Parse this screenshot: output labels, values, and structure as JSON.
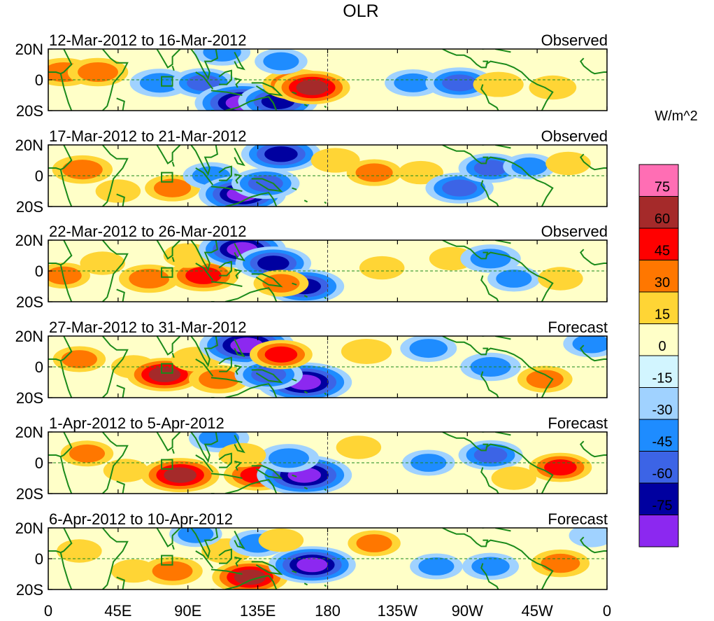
{
  "chart_data": {
    "type": "heatmap",
    "title": "OLR",
    "units_label": "W/m^2",
    "x_tick_labels": [
      "0",
      "45E",
      "90E",
      "135E",
      "180",
      "135W",
      "90W",
      "45W",
      "0"
    ],
    "x_tick_lons": [
      0,
      45,
      90,
      135,
      180,
      225,
      270,
      315,
      360
    ],
    "y_tick_labels": [
      "20N",
      "0",
      "20S"
    ],
    "y_tick_lats": [
      20,
      0,
      -20
    ],
    "lon_range": [
      0,
      360
    ],
    "lat_range": [
      -20,
      20
    ],
    "colorbar": {
      "labels": [
        "75",
        "60",
        "45",
        "30",
        "15",
        "0",
        "-15",
        "-30",
        "-45",
        "-60",
        "-75"
      ],
      "levels": [
        75,
        60,
        45,
        30,
        15,
        0,
        -15,
        -30,
        -45,
        -60,
        -75
      ],
      "colors": [
        "#ff6eb4",
        "#a52a2a",
        "#ff0000",
        "#ff7700",
        "#ffd535",
        "#ffffc8",
        "#d2f5ff",
        "#a0d2ff",
        "#1e8cff",
        "#3c64e6",
        "#0000a0",
        "#8c28f0"
      ]
    },
    "panels": [
      {
        "period": "12-Mar-2012 to 16-Mar-2012",
        "kind": "Observed",
        "anomalies": [
          {
            "lon": 10,
            "lat": 5,
            "value": 35
          },
          {
            "lon": 32,
            "lat": 5,
            "value": 35
          },
          {
            "lon": 72,
            "lat": -2,
            "value": -35
          },
          {
            "lon": 100,
            "lat": -2,
            "value": -40
          },
          {
            "lon": 125,
            "lat": -15,
            "value": -80
          },
          {
            "lon": 148,
            "lat": -14,
            "value": -60
          },
          {
            "lon": 160,
            "lat": -3,
            "value": 45
          },
          {
            "lon": 170,
            "lat": -5,
            "value": 55
          },
          {
            "lon": 112,
            "lat": 18,
            "value": -30
          },
          {
            "lon": 150,
            "lat": 12,
            "value": -25
          },
          {
            "lon": 235,
            "lat": -2,
            "value": -30
          },
          {
            "lon": 265,
            "lat": -2,
            "value": -45
          },
          {
            "lon": 290,
            "lat": -3,
            "value": 22
          },
          {
            "lon": 325,
            "lat": -5,
            "value": 18
          }
        ]
      },
      {
        "period": "17-Mar-2012 to 21-Mar-2012",
        "kind": "Observed",
        "anomalies": [
          {
            "lon": 22,
            "lat": 4,
            "value": 35
          },
          {
            "lon": 45,
            "lat": -10,
            "value": 15
          },
          {
            "lon": 80,
            "lat": -8,
            "value": 28
          },
          {
            "lon": 105,
            "lat": 0,
            "value": -30
          },
          {
            "lon": 125,
            "lat": -12,
            "value": -70
          },
          {
            "lon": 150,
            "lat": 14,
            "value": -60
          },
          {
            "lon": 140,
            "lat": -5,
            "value": -45
          },
          {
            "lon": 185,
            "lat": 10,
            "value": 20
          },
          {
            "lon": 210,
            "lat": 2,
            "value": 28
          },
          {
            "lon": 240,
            "lat": 2,
            "value": 15
          },
          {
            "lon": 265,
            "lat": -8,
            "value": -45
          },
          {
            "lon": 285,
            "lat": 5,
            "value": -40
          },
          {
            "lon": 310,
            "lat": 6,
            "value": -25
          },
          {
            "lon": 335,
            "lat": 8,
            "value": 15
          }
        ]
      },
      {
        "period": "22-Mar-2012 to 26-Mar-2012",
        "kind": "Observed",
        "anomalies": [
          {
            "lon": 10,
            "lat": -3,
            "value": 25
          },
          {
            "lon": 35,
            "lat": 5,
            "value": 15
          },
          {
            "lon": 65,
            "lat": -5,
            "value": 35
          },
          {
            "lon": 100,
            "lat": -3,
            "value": 48
          },
          {
            "lon": 90,
            "lat": 10,
            "value": 20
          },
          {
            "lon": 125,
            "lat": 14,
            "value": -70
          },
          {
            "lon": 145,
            "lat": 5,
            "value": -55
          },
          {
            "lon": 165,
            "lat": -10,
            "value": -60
          },
          {
            "lon": 150,
            "lat": -8,
            "value": 28
          },
          {
            "lon": 215,
            "lat": 2,
            "value": 15
          },
          {
            "lon": 260,
            "lat": 8,
            "value": 15
          },
          {
            "lon": 285,
            "lat": 8,
            "value": -35
          },
          {
            "lon": 300,
            "lat": -5,
            "value": -25
          },
          {
            "lon": 330,
            "lat": -5,
            "value": 15
          }
        ]
      },
      {
        "period": "27-Mar-2012 to 31-Mar-2012",
        "kind": "Forecast",
        "anomalies": [
          {
            "lon": 20,
            "lat": 5,
            "value": 25
          },
          {
            "lon": 55,
            "lat": 0,
            "value": 15
          },
          {
            "lon": 75,
            "lat": -5,
            "value": 55
          },
          {
            "lon": 110,
            "lat": -8,
            "value": 35
          },
          {
            "lon": 95,
            "lat": 5,
            "value": 20
          },
          {
            "lon": 128,
            "lat": 14,
            "value": -80
          },
          {
            "lon": 165,
            "lat": -10,
            "value": -80
          },
          {
            "lon": 142,
            "lat": -5,
            "value": -45
          },
          {
            "lon": 150,
            "lat": 8,
            "value": 38
          },
          {
            "lon": 205,
            "lat": 10,
            "value": 22
          },
          {
            "lon": 245,
            "lat": 12,
            "value": -30
          },
          {
            "lon": 285,
            "lat": 0,
            "value": -35
          },
          {
            "lon": 320,
            "lat": -8,
            "value": 28
          },
          {
            "lon": 350,
            "lat": 15,
            "value": -30
          }
        ]
      },
      {
        "period": "1-Apr-2012 to 5-Apr-2012",
        "kind": "Forecast",
        "anomalies": [
          {
            "lon": 25,
            "lat": 6,
            "value": 25
          },
          {
            "lon": 50,
            "lat": -5,
            "value": 15
          },
          {
            "lon": 85,
            "lat": -8,
            "value": 58
          },
          {
            "lon": 135,
            "lat": -8,
            "value": 45
          },
          {
            "lon": 165,
            "lat": -8,
            "value": -80
          },
          {
            "lon": 155,
            "lat": 3,
            "value": -35
          },
          {
            "lon": 110,
            "lat": 16,
            "value": -35
          },
          {
            "lon": 125,
            "lat": 5,
            "value": 18
          },
          {
            "lon": 200,
            "lat": 10,
            "value": 15
          },
          {
            "lon": 245,
            "lat": 0,
            "value": -25
          },
          {
            "lon": 285,
            "lat": 5,
            "value": -40
          },
          {
            "lon": 330,
            "lat": -3,
            "value": 38
          },
          {
            "lon": 300,
            "lat": -10,
            "value": 15
          }
        ]
      },
      {
        "period": "6-Apr-2012 to 10-Apr-2012",
        "kind": "Forecast",
        "anomalies": [
          {
            "lon": 20,
            "lat": 5,
            "value": 15
          },
          {
            "lon": 55,
            "lat": -8,
            "value": 15
          },
          {
            "lon": 80,
            "lat": -8,
            "value": 35
          },
          {
            "lon": 130,
            "lat": -12,
            "value": 55
          },
          {
            "lon": 115,
            "lat": 5,
            "value": 22
          },
          {
            "lon": 95,
            "lat": 16,
            "value": -25
          },
          {
            "lon": 135,
            "lat": 10,
            "value": -30
          },
          {
            "lon": 170,
            "lat": -4,
            "value": -70
          },
          {
            "lon": 150,
            "lat": 12,
            "value": 15
          },
          {
            "lon": 210,
            "lat": 10,
            "value": 25
          },
          {
            "lon": 250,
            "lat": -5,
            "value": -25
          },
          {
            "lon": 285,
            "lat": -5,
            "value": -30
          },
          {
            "lon": 330,
            "lat": -3,
            "value": 32
          },
          {
            "lon": 350,
            "lat": 15,
            "value": -15
          }
        ]
      }
    ]
  }
}
